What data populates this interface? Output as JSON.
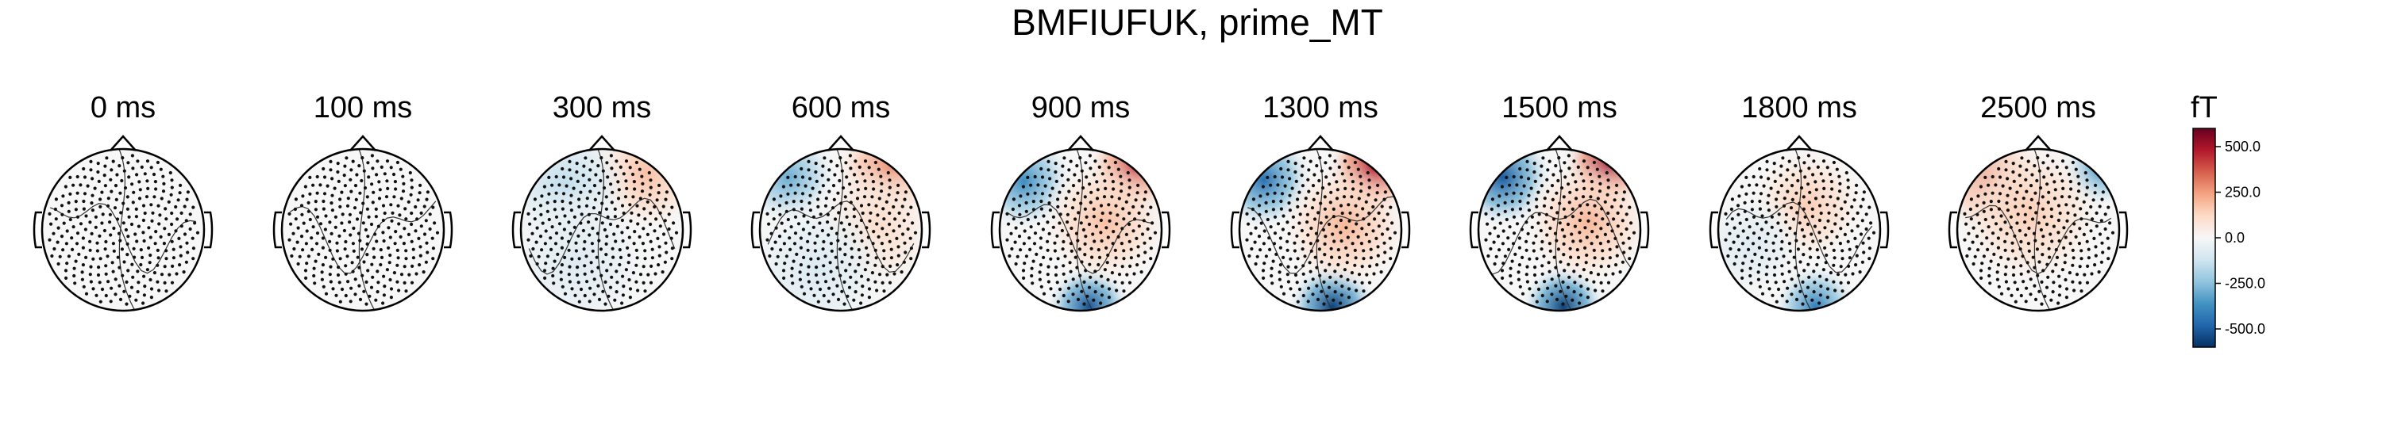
{
  "chart_data": {
    "type": "heatmap",
    "title": "BMFIUFUK, prime_MT",
    "panels": [
      {
        "label": "0 ms",
        "time_ms": 0,
        "fields": []
      },
      {
        "label": "100 ms",
        "time_ms": 100,
        "fields": []
      },
      {
        "label": "300 ms",
        "time_ms": 300,
        "fields": [
          {
            "x": 0.55,
            "y": 0.7,
            "v": 180,
            "r": 0.55
          },
          {
            "x": -0.45,
            "y": 0.55,
            "v": -150,
            "r": 0.6
          },
          {
            "x": -0.3,
            "y": -0.4,
            "v": -80,
            "r": 0.7
          }
        ]
      },
      {
        "label": "600 ms",
        "time_ms": 600,
        "fields": [
          {
            "x": 0.6,
            "y": 0.75,
            "v": 280,
            "r": 0.5
          },
          {
            "x": -0.65,
            "y": 0.65,
            "v": -300,
            "r": 0.45
          },
          {
            "x": 0.4,
            "y": 0.0,
            "v": 120,
            "r": 0.6
          },
          {
            "x": -0.3,
            "y": -0.5,
            "v": -90,
            "r": 0.7
          }
        ]
      },
      {
        "label": "900 ms",
        "time_ms": 900,
        "fields": [
          {
            "x": 0.65,
            "y": 0.75,
            "v": 420,
            "r": 0.42
          },
          {
            "x": -0.7,
            "y": 0.6,
            "v": -380,
            "r": 0.45
          },
          {
            "x": 0.1,
            "y": -0.95,
            "v": -520,
            "r": 0.38
          },
          {
            "x": 0.3,
            "y": 0.1,
            "v": 180,
            "r": 0.6
          }
        ]
      },
      {
        "label": "1300 ms",
        "time_ms": 1300,
        "fields": [
          {
            "x": 0.65,
            "y": 0.75,
            "v": 480,
            "r": 0.42
          },
          {
            "x": -0.7,
            "y": 0.62,
            "v": -450,
            "r": 0.45
          },
          {
            "x": 0.15,
            "y": -0.95,
            "v": -560,
            "r": 0.4
          },
          {
            "x": 0.3,
            "y": 0.05,
            "v": 200,
            "r": 0.6
          }
        ]
      },
      {
        "label": "1500 ms",
        "time_ms": 1500,
        "fields": [
          {
            "x": 0.6,
            "y": 0.8,
            "v": 520,
            "r": 0.4
          },
          {
            "x": -0.7,
            "y": 0.65,
            "v": -500,
            "r": 0.45
          },
          {
            "x": 0.05,
            "y": -0.95,
            "v": -560,
            "r": 0.38
          },
          {
            "x": 0.35,
            "y": 0.1,
            "v": 200,
            "r": 0.6
          }
        ]
      },
      {
        "label": "1800 ms",
        "time_ms": 1800,
        "fields": [
          {
            "x": 0.1,
            "y": 0.3,
            "v": 150,
            "r": 0.55
          },
          {
            "x": 0.2,
            "y": -0.95,
            "v": -420,
            "r": 0.38
          },
          {
            "x": -0.6,
            "y": -0.2,
            "v": -80,
            "r": 0.5
          }
        ]
      },
      {
        "label": "2500 ms",
        "time_ms": 2500,
        "fields": [
          {
            "x": -0.6,
            "y": 0.6,
            "v": 300,
            "r": 0.5
          },
          {
            "x": 0.75,
            "y": 0.75,
            "v": -350,
            "r": 0.35
          },
          {
            "x": -0.1,
            "y": 0.2,
            "v": 150,
            "r": 0.7
          }
        ]
      }
    ],
    "colorbar": {
      "unit": "fT",
      "range": [
        -600,
        600
      ],
      "ticks": [
        500,
        250,
        0,
        -250,
        -500
      ],
      "tick_labels": [
        "500.0",
        "250.0",
        "0.0",
        "-250.0",
        "-500.0"
      ],
      "colors": [
        "#053061",
        "#2166ac",
        "#4393c3",
        "#92c5de",
        "#d1e5f0",
        "#f7f7f7",
        "#fddbc7",
        "#f4a582",
        "#d6604d",
        "#b2182b",
        "#67001f"
      ]
    },
    "sensor_count": 300,
    "grid": false,
    "legend": "right"
  }
}
